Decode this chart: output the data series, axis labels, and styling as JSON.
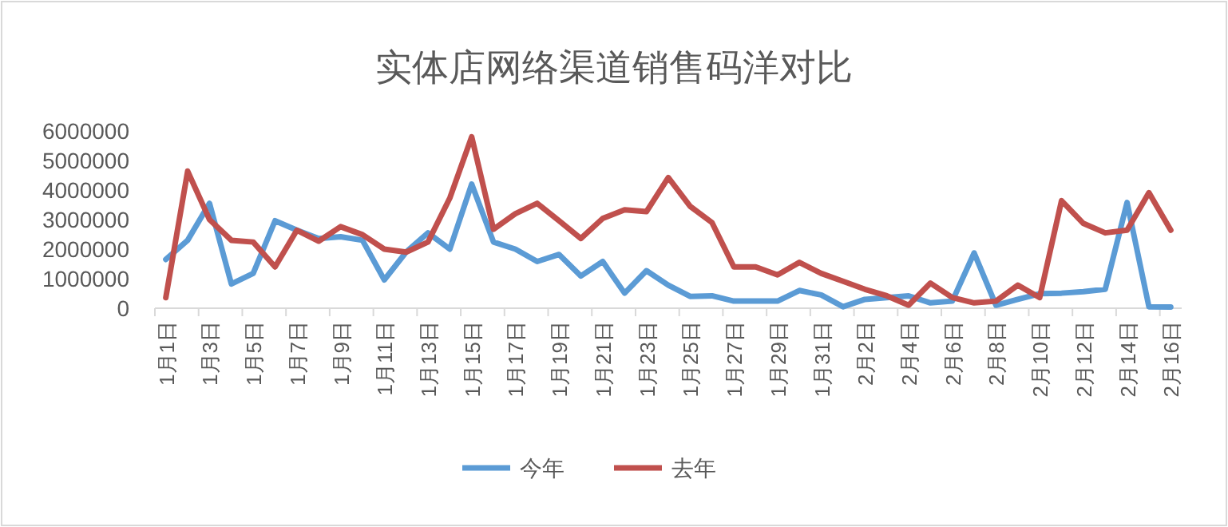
{
  "chart_data": {
    "type": "line",
    "title": "实体店网络渠道销售码洋对比",
    "categories": [
      "1月1日",
      null,
      "1月3日",
      null,
      "1月5日",
      null,
      "1月7日",
      null,
      "1月9日",
      null,
      "1月11日",
      null,
      "1月13日",
      null,
      "1月15日",
      null,
      "1月17日",
      null,
      "1月19日",
      null,
      "1月21日",
      null,
      "1月23日",
      null,
      "1月25日",
      null,
      "1月27日",
      null,
      "1月29日",
      null,
      "1月31日",
      null,
      "2月2日",
      null,
      "2月4日",
      null,
      "2月6日",
      null,
      "2月8日",
      null,
      "2月10日",
      null,
      "2月12日",
      null,
      "2月14日",
      null,
      "2月16日"
    ],
    "series": [
      {
        "name": "今年",
        "color": "#5b9bd5",
        "values": [
          1650000,
          2300000,
          3550000,
          820000,
          1180000,
          2960000,
          2640000,
          2360000,
          2420000,
          2300000,
          960000,
          1900000,
          2550000,
          2000000,
          4200000,
          2240000,
          2000000,
          1580000,
          1820000,
          1090000,
          1580000,
          510000,
          1270000,
          780000,
          400000,
          420000,
          240000,
          240000,
          240000,
          600000,
          450000,
          50000,
          300000,
          360000,
          420000,
          180000,
          240000,
          1870000,
          100000,
          300000,
          490000,
          510000,
          560000,
          640000,
          3580000,
          50000,
          40000
        ]
      },
      {
        "name": "去年",
        "color": "#c0504d",
        "values": [
          360000,
          4640000,
          3000000,
          2300000,
          2240000,
          1400000,
          2640000,
          2270000,
          2760000,
          2490000,
          2000000,
          1900000,
          2240000,
          3730000,
          5800000,
          2670000,
          3200000,
          3550000,
          2960000,
          2360000,
          3040000,
          3330000,
          3270000,
          4420000,
          3450000,
          2900000,
          1400000,
          1400000,
          1130000,
          1550000,
          1180000,
          910000,
          640000,
          420000,
          100000,
          850000,
          360000,
          180000,
          240000,
          780000,
          360000,
          3640000,
          2870000,
          2550000,
          2640000,
          3910000,
          2640000
        ]
      }
    ],
    "ylim": [
      0,
      6000000
    ],
    "yticks": [
      0,
      1000000,
      2000000,
      3000000,
      4000000,
      5000000,
      6000000
    ],
    "grid": false,
    "legend": "bottom",
    "marker": "none",
    "line_style": "solid"
  }
}
